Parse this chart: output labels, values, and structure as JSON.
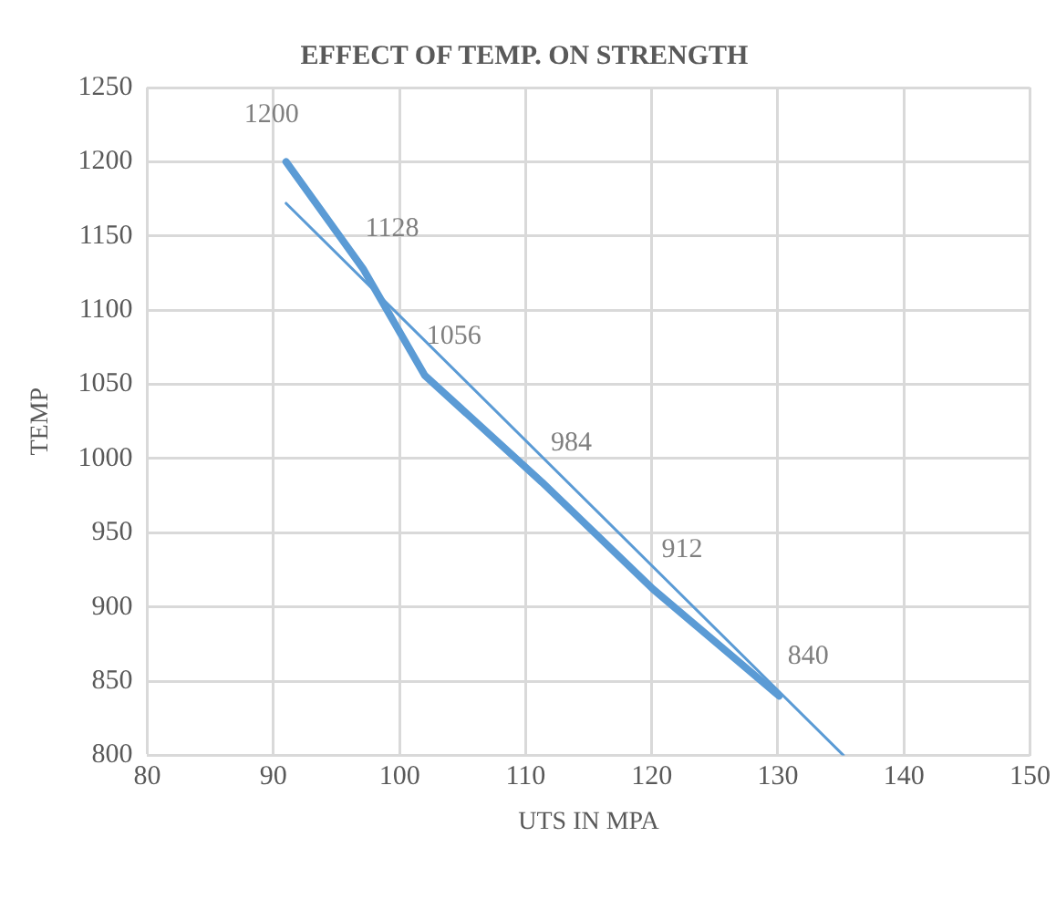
{
  "chart_data": {
    "type": "line",
    "title": "EFFECT OF TEMP. ON STRENGTH",
    "xlabel": "UTS IN MPA",
    "ylabel": "TEMP",
    "xlim": [
      80,
      150
    ],
    "xticks": [
      80,
      90,
      100,
      110,
      120,
      130,
      140,
      150
    ],
    "ylim": [
      800,
      1250
    ],
    "yticks": [
      800,
      850,
      900,
      950,
      1000,
      1050,
      1100,
      1150,
      1200,
      1250
    ],
    "grid": true,
    "legend": false,
    "marker": "none",
    "series": [
      {
        "color": "#5b9bd5",
        "x": [
          91,
          97.1,
          102,
          111.3,
          120.1,
          130.1
        ],
        "values": [
          1200,
          1128,
          1056,
          984,
          912,
          840
        ],
        "value_labels": [
          "1200",
          "1128",
          "1056",
          "984",
          "912",
          "840"
        ]
      },
      {
        "type": "line",
        "color": "#5b9bd5",
        "x": [
          91,
          135.2
        ],
        "values": [
          1172,
          800
        ]
      }
    ]
  }
}
